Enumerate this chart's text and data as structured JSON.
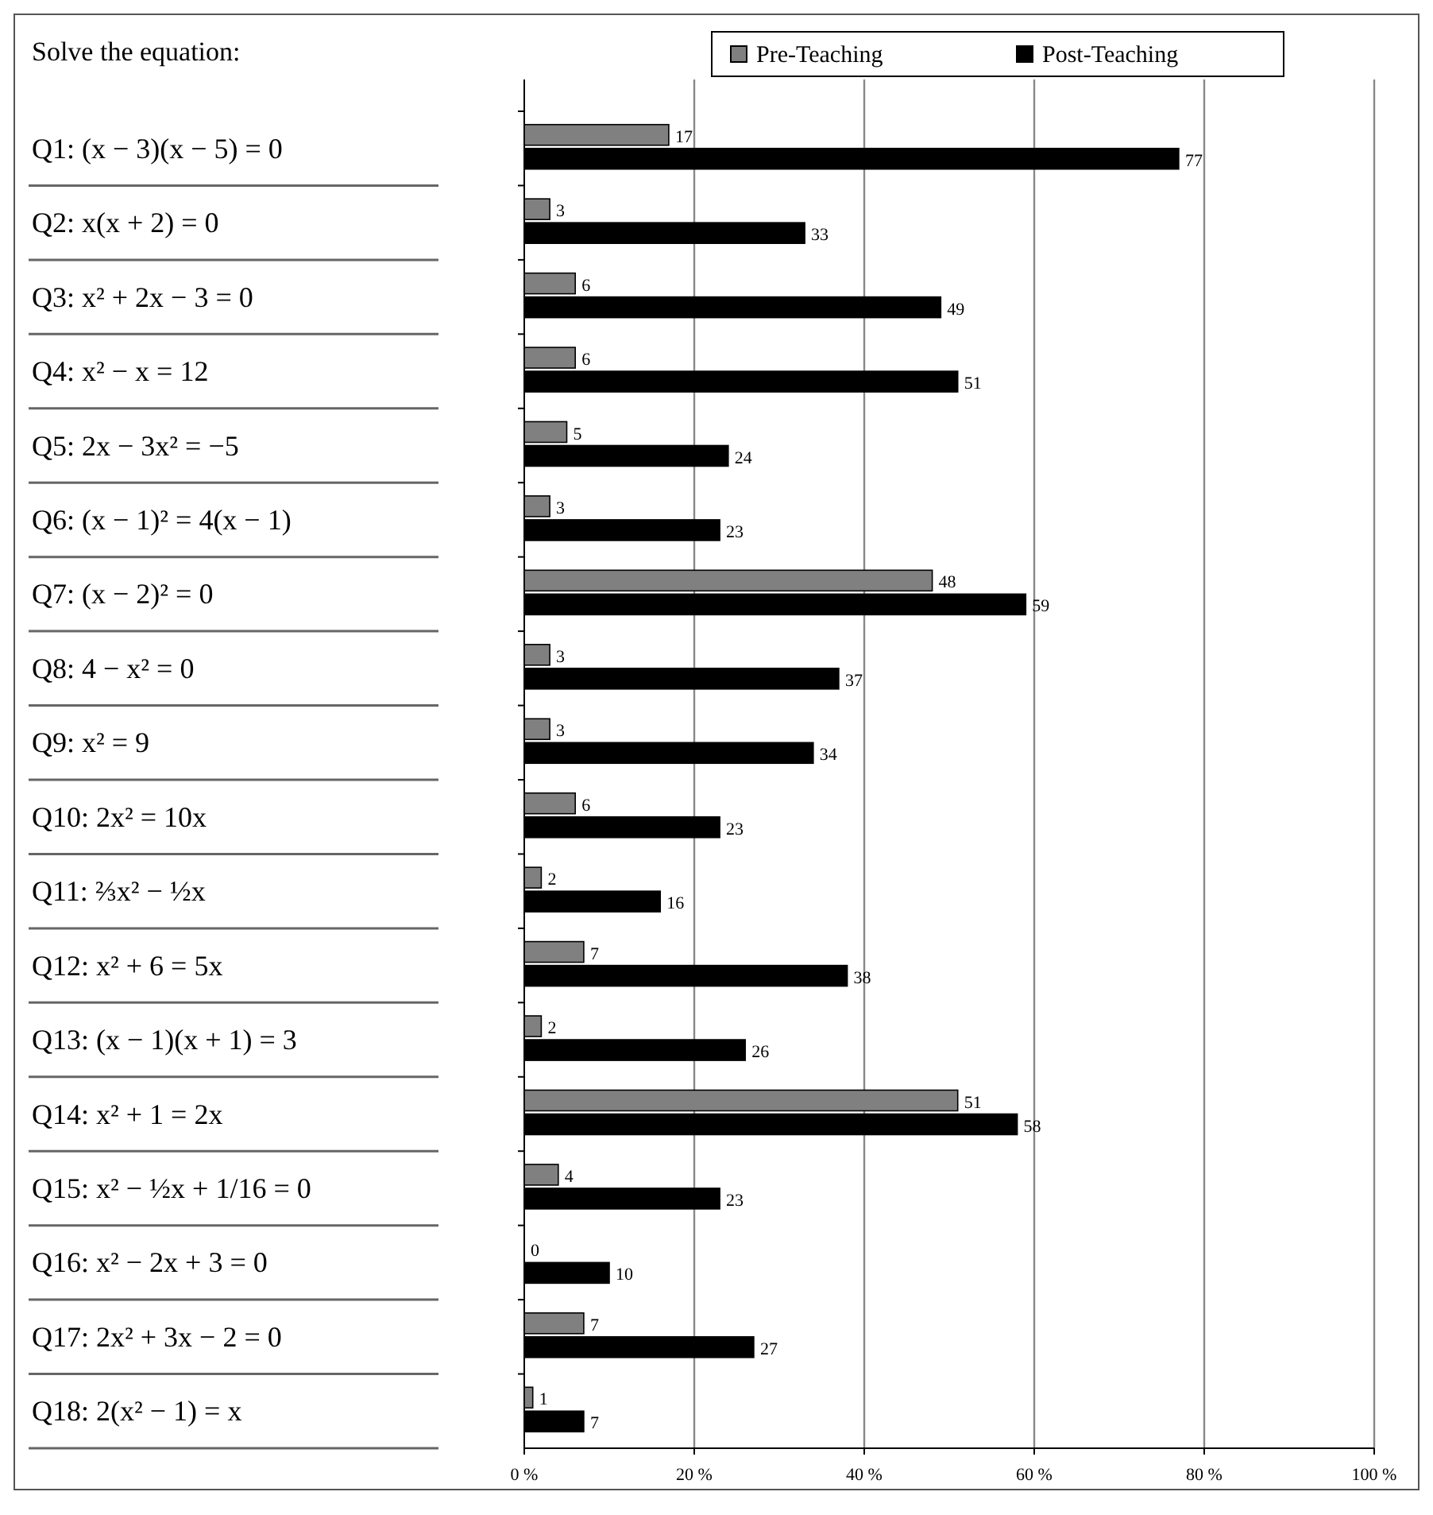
{
  "chart_data": {
    "type": "bar",
    "orientation": "horizontal",
    "title": "Solve the equation:",
    "categories": [
      "Q1: (x − 3)(x − 5) = 0",
      "Q2:  x(x + 2) = 0",
      "Q3: x² + 2x − 3 = 0",
      "Q4: x² − x = 12",
      "Q5: 2x − 3x² = −5",
      "Q6: (x − 1)² = 4(x − 1)",
      "Q7: (x − 2)² = 0",
      "Q8: 4 − x² = 0",
      "Q9: x² = 9",
      "Q10: 2x² = 10x",
      "Q11: ⅔x² − ½x",
      "Q12: x² + 6 = 5x",
      "Q13: (x − 1)(x + 1) = 3",
      "Q14: x² + 1 = 2x",
      "Q15: x² − ½x + 1/16 = 0",
      "Q16: x² − 2x + 3 = 0",
      "Q17:  2x² + 3x − 2 = 0",
      "Q18: 2(x² − 1) = x"
    ],
    "series": [
      {
        "name": "Pre-Teaching",
        "color": "#808080",
        "values": [
          17,
          3,
          6,
          6,
          5,
          3,
          48,
          3,
          3,
          6,
          2,
          7,
          2,
          51,
          4,
          0,
          7,
          1
        ]
      },
      {
        "name": "Post-Teaching",
        "color": "#000000",
        "values": [
          77,
          33,
          49,
          51,
          24,
          23,
          59,
          37,
          34,
          23,
          16,
          38,
          26,
          58,
          23,
          10,
          27,
          7
        ]
      }
    ],
    "xlim": [
      0,
      100
    ],
    "xticks": [
      {
        "value": 0,
        "label": "0 %"
      },
      {
        "value": 20,
        "label": "20 %"
      },
      {
        "value": 40,
        "label": "40 %"
      },
      {
        "value": 60,
        "label": "60 %"
      },
      {
        "value": 80,
        "label": "80 %"
      },
      {
        "value": 100,
        "label": "100 %"
      }
    ],
    "grid": "x",
    "legend": "top",
    "data_labels": true
  }
}
